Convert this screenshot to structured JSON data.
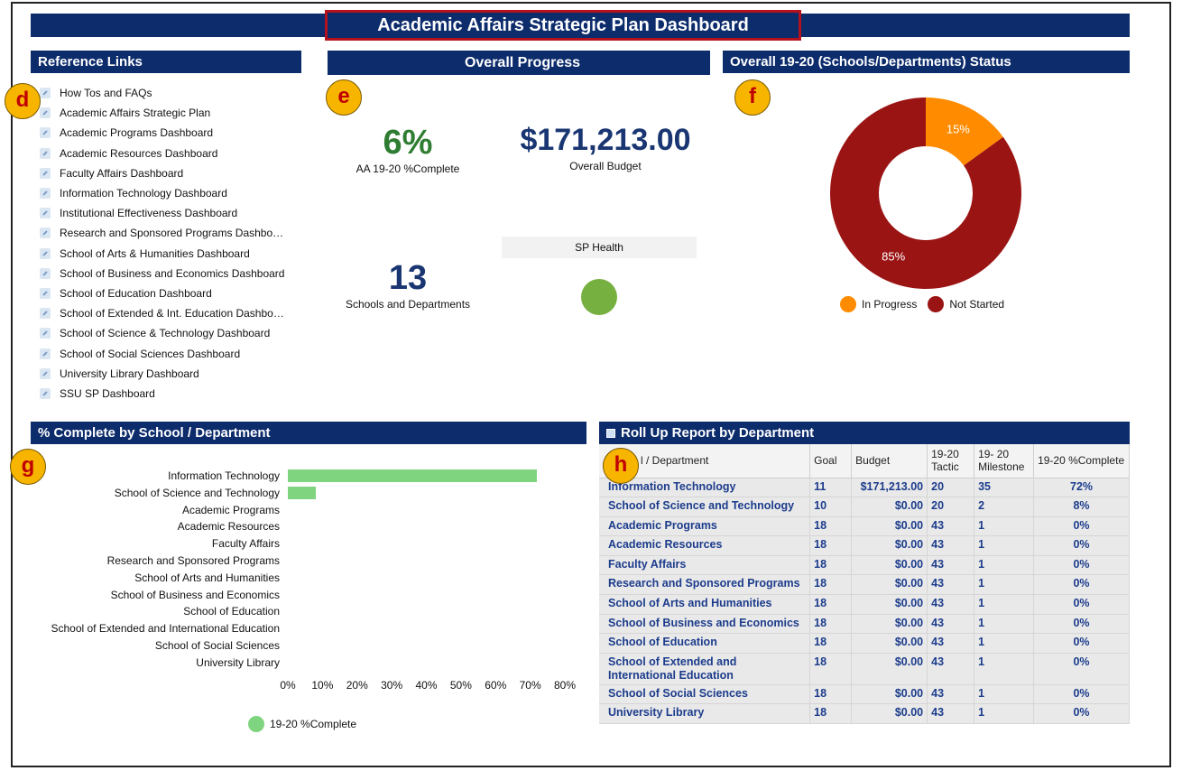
{
  "dashboard": {
    "title": "Academic Affairs Strategic Plan Dashboard"
  },
  "badges": {
    "d": "d",
    "e": "e",
    "f": "f",
    "g": "g",
    "h": "h"
  },
  "reference_links": {
    "title": "Reference Links",
    "items": [
      "How Tos and FAQs",
      "Academic Affairs Strategic Plan",
      "Academic Programs Dashboard",
      "Academic Resources Dashboard",
      "Faculty Affairs Dashboard",
      "Information Technology Dashboard",
      "Institutional Effectiveness Dashboard",
      "Research and Sponsored Programs Dashbo…",
      "School of Arts & Humanities Dashboard",
      "School of Business and Economics Dashboard",
      "School of Education Dashboard",
      "School of Extended & Int. Education Dashbo…",
      "School of Science & Technology Dashboard",
      "School of Social Sciences Dashboard",
      "University Library Dashboard",
      "SSU SP Dashboard"
    ]
  },
  "overall_progress": {
    "title": "Overall Progress",
    "percent_complete": "6%",
    "percent_label": "AA 19-20 %Complete",
    "budget": "$171,213.00",
    "budget_label": "Overall Budget",
    "count": "13",
    "count_label": "Schools and Departments",
    "health_label": "SP Health",
    "colors": {
      "percent": "#2e7d32",
      "blue": "#1a3672",
      "health": "#76b041"
    }
  },
  "status": {
    "title": "Overall 19-20 (Schools/Departments) Status",
    "chart_data": {
      "type": "pie",
      "categories": [
        "In Progress",
        "Not Started"
      ],
      "values": [
        15,
        85
      ],
      "labels": [
        "15%",
        "85%"
      ],
      "colors": [
        "#ff8c00",
        "#9b1414"
      ],
      "legend": "bottom"
    }
  },
  "complete_by_school": {
    "title": "% Complete by School / Department",
    "chart_data": {
      "type": "bar",
      "orientation": "horizontal",
      "categories": [
        "Information Technology",
        "School of Science and Technology",
        "Academic Programs",
        "Academic Resources",
        "Faculty Affairs",
        "Research and Sponsored Programs",
        "School of Arts and Humanities",
        "School of Business and Economics",
        "School of Education",
        "School of Extended and International Education",
        "School of Social Sciences",
        "University Library"
      ],
      "series": [
        {
          "name": "19-20 %Complete",
          "values": [
            72,
            8,
            0,
            0,
            0,
            0,
            0,
            0,
            0,
            0,
            0,
            0
          ]
        }
      ],
      "xlim": [
        0,
        80
      ],
      "xticks": [
        "0%",
        "10%",
        "20%",
        "30%",
        "40%",
        "50%",
        "60%",
        "70%",
        "80%"
      ],
      "color": "#7fd47f",
      "legend": "bottom"
    }
  },
  "rollup": {
    "title": "Roll Up Report by Department",
    "columns": [
      "l / Department",
      "Goal",
      "Budget",
      "19-20 Tactic",
      "19- 20 Milestone",
      "19-20 %Complete"
    ],
    "rows": [
      [
        "Information Technology",
        "11",
        "$171,213.00",
        "20",
        "35",
        "72%"
      ],
      [
        "School of Science and Technology",
        "10",
        "$0.00",
        "20",
        "2",
        "8%"
      ],
      [
        "Academic Programs",
        "18",
        "$0.00",
        "43",
        "1",
        "0%"
      ],
      [
        "Academic Resources",
        "18",
        "$0.00",
        "43",
        "1",
        "0%"
      ],
      [
        "Faculty Affairs",
        "18",
        "$0.00",
        "43",
        "1",
        "0%"
      ],
      [
        "Research and Sponsored Programs",
        "18",
        "$0.00",
        "43",
        "1",
        "0%"
      ],
      [
        "School of Arts and Humanities",
        "18",
        "$0.00",
        "43",
        "1",
        "0%"
      ],
      [
        "School of Business and Economics",
        "18",
        "$0.00",
        "43",
        "1",
        "0%"
      ],
      [
        "School of Education",
        "18",
        "$0.00",
        "43",
        "1",
        "0%"
      ],
      [
        "School of Extended and International Education",
        "18",
        "$0.00",
        "43",
        "1",
        "0%"
      ],
      [
        "School of Social Sciences",
        "18",
        "$0.00",
        "43",
        "1",
        "0%"
      ],
      [
        "University Library",
        "18",
        "$0.00",
        "43",
        "1",
        "0%"
      ]
    ]
  }
}
